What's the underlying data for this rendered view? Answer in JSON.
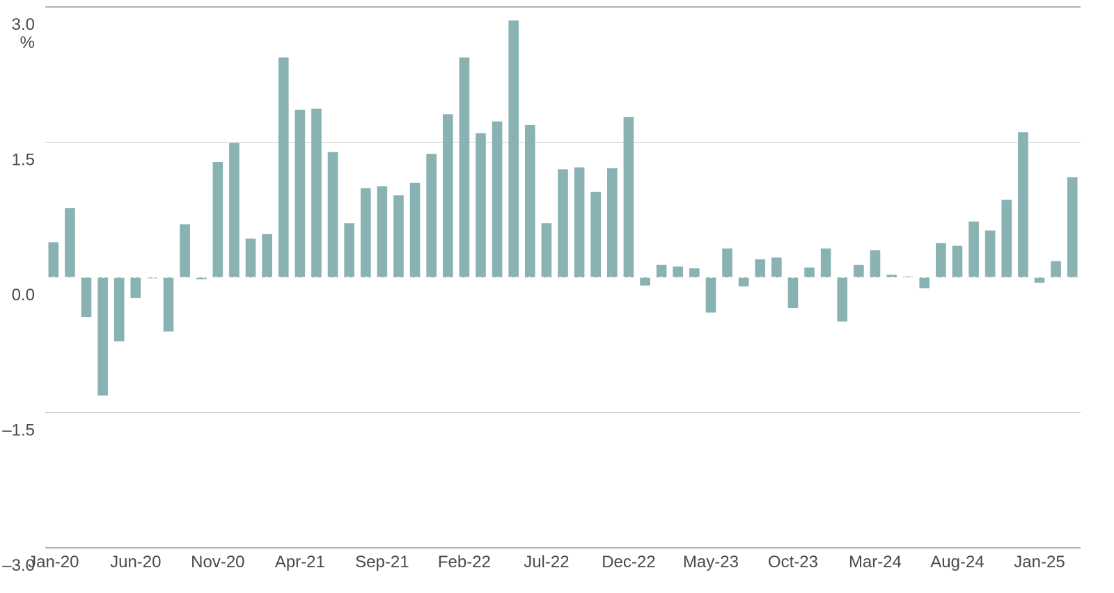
{
  "chart_data": {
    "type": "bar",
    "title": "",
    "xlabel": "",
    "ylabel": "%",
    "ylim": [
      -3.0,
      3.0
    ],
    "yticks": [
      3.0,
      1.5,
      0.0,
      -1.5,
      -3.0
    ],
    "ytick_labels": [
      "3.0",
      "1.5",
      "0.0",
      "–1.5",
      "–3.0"
    ],
    "grid": true,
    "bar_color": "#88b3b2",
    "xtick_labels": [
      "Jan-20",
      "Jun-20",
      "Nov-20",
      "Apr-21",
      "Sep-21",
      "Feb-22",
      "Jul-22",
      "Dec-22",
      "May-23",
      "Oct-23",
      "Mar-24",
      "Aug-24",
      "Jan-25"
    ],
    "categories": [
      "Jan-20",
      "Feb-20",
      "Mar-20",
      "Apr-20",
      "May-20",
      "Jun-20",
      "Jul-20",
      "Aug-20",
      "Sep-20",
      "Oct-20",
      "Nov-20",
      "Dec-20",
      "Jan-21",
      "Feb-21",
      "Mar-21",
      "Apr-21",
      "May-21",
      "Jun-21",
      "Jul-21",
      "Aug-21",
      "Sep-21",
      "Oct-21",
      "Nov-21",
      "Dec-21",
      "Jan-22",
      "Feb-22",
      "Mar-22",
      "Apr-22",
      "May-22",
      "Jun-22",
      "Jul-22",
      "Aug-22",
      "Sep-22",
      "Oct-22",
      "Nov-22",
      "Dec-22",
      "Jan-23",
      "Feb-23",
      "Mar-23",
      "Apr-23",
      "May-23",
      "Jun-23",
      "Jul-23",
      "Aug-23",
      "Sep-23",
      "Oct-23",
      "Nov-23",
      "Dec-23",
      "Jan-24",
      "Feb-24",
      "Mar-24",
      "Apr-24",
      "May-24",
      "Jun-24",
      "Jul-24",
      "Aug-24",
      "Sep-24",
      "Oct-24",
      "Nov-24",
      "Dec-24",
      "Jan-25",
      "Feb-25",
      "Mar-25"
    ],
    "values": [
      0.39,
      0.77,
      -0.44,
      -1.31,
      -0.71,
      -0.23,
      -0.01,
      -0.6,
      0.59,
      -0.02,
      1.28,
      1.49,
      0.43,
      0.48,
      2.44,
      1.86,
      1.87,
      1.39,
      0.6,
      0.99,
      1.01,
      0.91,
      1.05,
      1.37,
      1.81,
      2.44,
      1.6,
      1.73,
      2.85,
      1.69,
      0.6,
      1.2,
      1.22,
      0.95,
      1.21,
      1.78,
      -0.09,
      0.14,
      0.12,
      0.1,
      -0.39,
      0.32,
      -0.1,
      0.2,
      0.22,
      -0.34,
      0.11,
      0.32,
      -0.49,
      0.14,
      0.3,
      0.03,
      0.01,
      -0.12,
      0.38,
      0.35,
      0.62,
      0.52,
      0.86,
      1.61,
      -0.06,
      0.18,
      1.11
    ]
  }
}
